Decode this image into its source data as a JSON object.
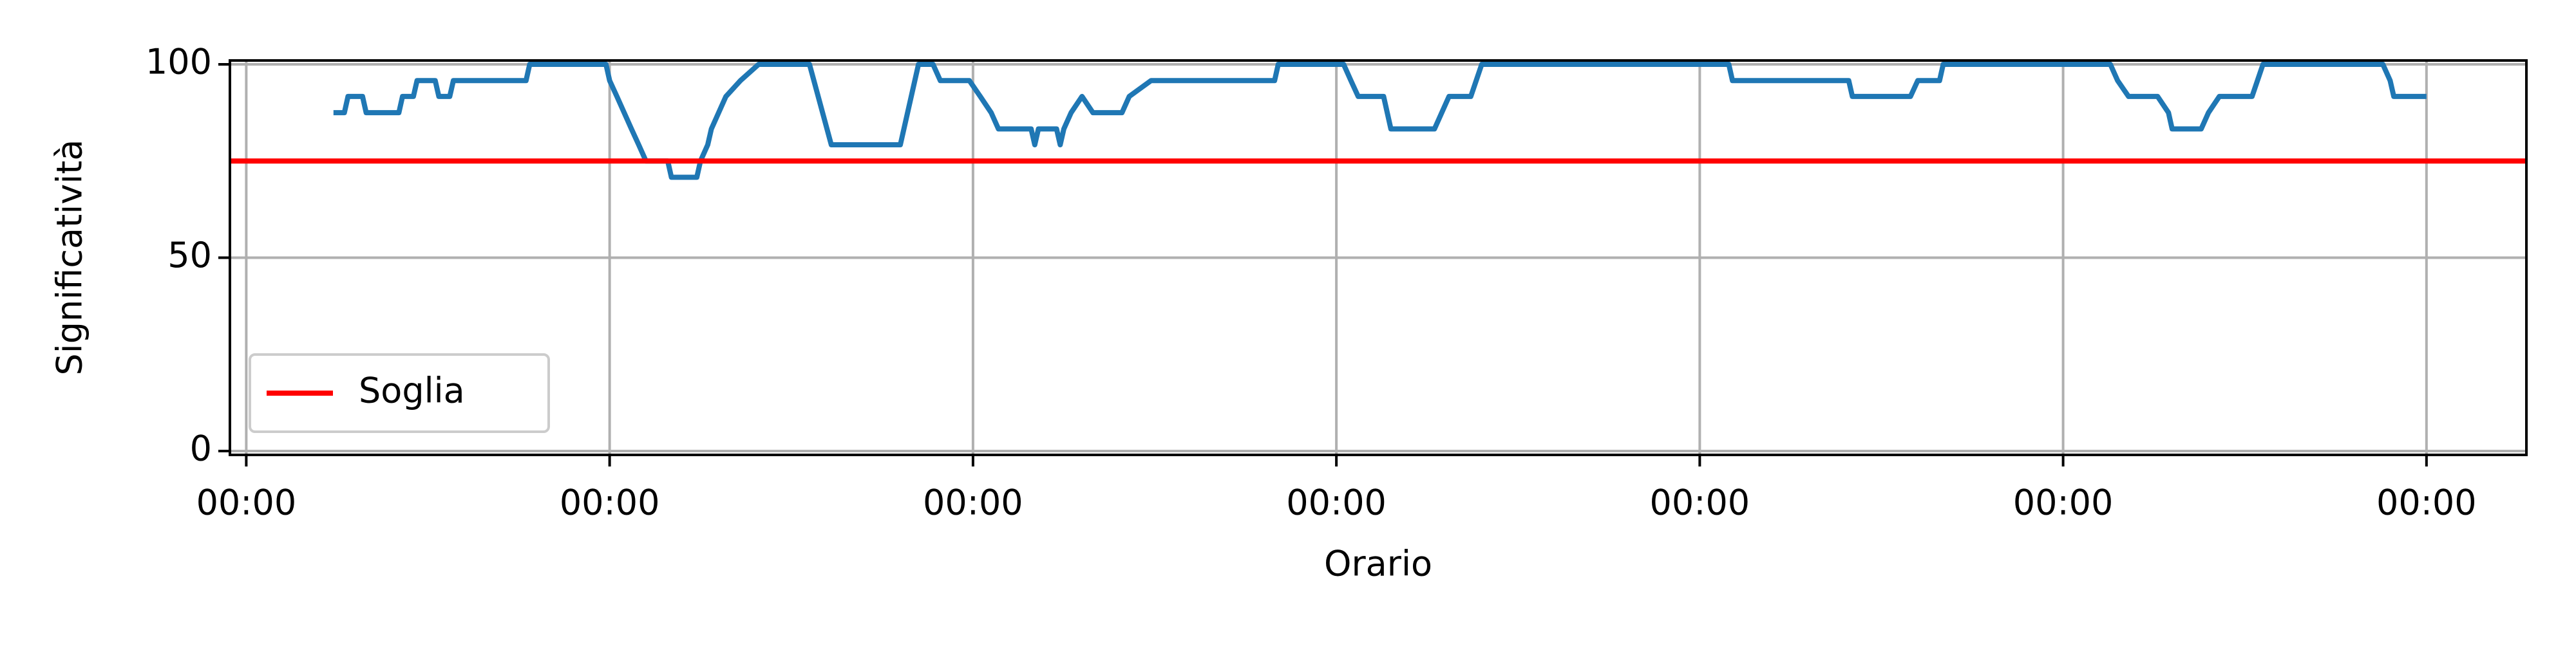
{
  "chart_data": {
    "type": "line",
    "xlabel": "Orario",
    "ylabel": "Significatività",
    "xlim": [
      -0.045,
      6.275
    ],
    "ylim": [
      -1,
      101
    ],
    "xticks": [
      {
        "value": 0,
        "label": "00:00"
      },
      {
        "value": 1,
        "label": "00:00"
      },
      {
        "value": 2,
        "label": "00:00"
      },
      {
        "value": 3,
        "label": "00:00"
      },
      {
        "value": 4,
        "label": "00:00"
      },
      {
        "value": 5,
        "label": "00:00"
      },
      {
        "value": 6,
        "label": "00:00"
      }
    ],
    "yticks": [
      0,
      50,
      100
    ],
    "grid": true,
    "legend": "lower left",
    "series": [
      {
        "color": "#1f77b4",
        "x": [
          0.24,
          0.27,
          0.28,
          0.32,
          0.33,
          0.42,
          0.43,
          0.46,
          0.47,
          0.52,
          0.53,
          0.56,
          0.57,
          0.77,
          0.78,
          0.99,
          1.0,
          1.02,
          1.04,
          1.06,
          1.08,
          1.1,
          1.16,
          1.17,
          1.24,
          1.25,
          1.27,
          1.28,
          1.3,
          1.32,
          1.36,
          1.41,
          1.55,
          1.61,
          1.8,
          1.85,
          1.89,
          1.91,
          1.99,
          2.02,
          2.05,
          2.07,
          2.16,
          2.17,
          2.18,
          2.23,
          2.24,
          2.25,
          2.27,
          2.3,
          2.33,
          2.41,
          2.43,
          2.49,
          2.83,
          2.84,
          3.02,
          3.04,
          3.06,
          3.13,
          3.15,
          3.27,
          3.29,
          3.31,
          3.37,
          3.4,
          4.08,
          4.09,
          4.41,
          4.42,
          4.58,
          4.6,
          4.66,
          4.67,
          5.13,
          5.15,
          5.18,
          5.26,
          5.29,
          5.3,
          5.38,
          5.4,
          5.43,
          5.52,
          5.55,
          5.88,
          5.9,
          5.91,
          6.0
        ],
        "values": [
          87.5,
          87.5,
          91.7,
          91.7,
          87.5,
          87.5,
          91.7,
          91.7,
          95.8,
          95.8,
          91.7,
          91.7,
          95.8,
          95.8,
          100,
          100,
          95.8,
          91.7,
          87.5,
          83.3,
          79.2,
          75,
          75,
          70.8,
          70.8,
          75,
          79.2,
          83.3,
          87.5,
          91.7,
          95.8,
          100,
          100,
          79.2,
          79.2,
          100,
          100,
          95.8,
          95.8,
          91.7,
          87.5,
          83.3,
          83.3,
          79.2,
          83.3,
          83.3,
          79.2,
          83.3,
          87.5,
          91.7,
          87.5,
          87.5,
          91.7,
          95.8,
          95.8,
          100,
          100,
          95.8,
          91.7,
          91.7,
          83.3,
          83.3,
          87.5,
          91.7,
          91.7,
          100,
          100,
          95.8,
          95.8,
          91.7,
          91.7,
          95.8,
          95.8,
          100,
          100,
          95.8,
          91.7,
          91.7,
          87.5,
          83.3,
          83.3,
          87.5,
          91.7,
          91.7,
          100,
          100,
          95.8,
          91.7,
          91.7
        ]
      }
    ],
    "threshold": {
      "name": "Soglia",
      "color": "#ff0000",
      "value": 75
    }
  }
}
